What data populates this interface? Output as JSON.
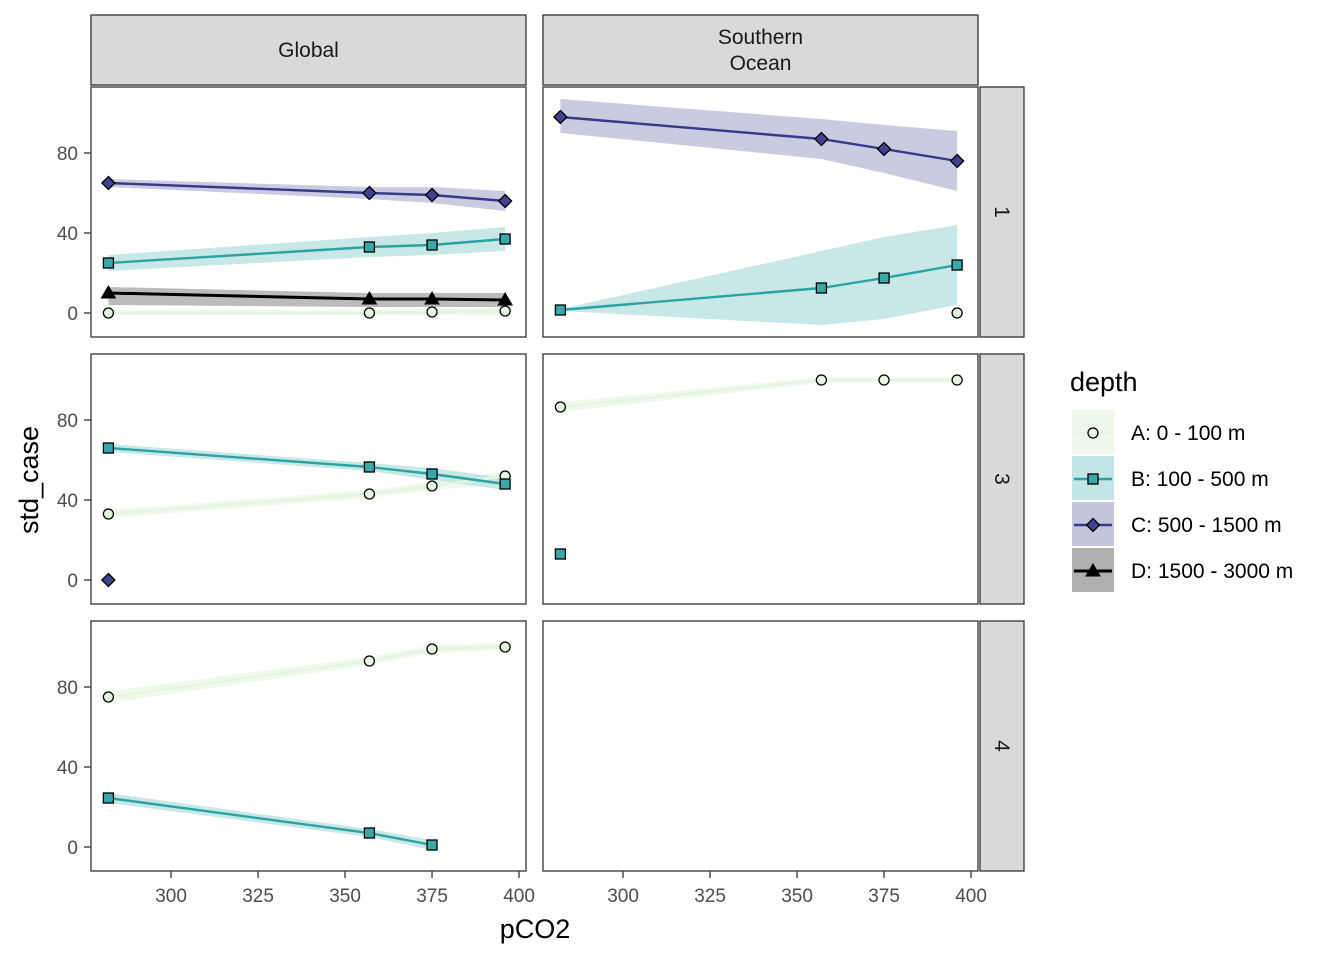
{
  "chart_data": {
    "type": "line",
    "xlabel": "pCO2",
    "ylabel": "std_case",
    "xlim": [
      277,
      402
    ],
    "ylim": [
      -12,
      113
    ],
    "x_ticks": [
      300,
      325,
      350,
      375,
      400
    ],
    "y_ticks": [
      0,
      40,
      80
    ],
    "col_facets": [
      "Global",
      "Southern\nOcean"
    ],
    "row_facets": [
      "1",
      "3",
      "4"
    ],
    "legend": {
      "title": "depth",
      "placement": "right",
      "entries": [
        {
          "key": "A",
          "label": "A: 0 - 100 m",
          "shape": "circle",
          "line_color": "#e5f5e0",
          "fill": "#e5f5e0",
          "band": "#edf8ea"
        },
        {
          "key": "B",
          "label": "B: 100 - 500 m",
          "shape": "square",
          "line_color": "#2ba3a3",
          "fill": "#3aa8a8",
          "band": "#c2e5e5"
        },
        {
          "key": "C",
          "label": "C: 500 - 1500 m",
          "shape": "diamond",
          "line_color": "#36398a",
          "fill": "#404290",
          "band": "#c4c5dd"
        },
        {
          "key": "D",
          "label": "D: 1500 - 3000 m",
          "shape": "triangle",
          "line_color": "#000000",
          "fill": "#000000",
          "band": "#b0b0b0"
        }
      ]
    },
    "panels": [
      {
        "col": 0,
        "row": 0,
        "series": [
          {
            "key": "A",
            "x": [
              282,
              357,
              375,
              396
            ],
            "y": [
              0,
              0,
              0.5,
              1
            ],
            "lo": [
              -1,
              -1,
              -1,
              -1
            ],
            "hi": [
              1.5,
              1.5,
              2,
              2.5
            ]
          },
          {
            "key": "B",
            "x": [
              282,
              357,
              375,
              396
            ],
            "y": [
              25,
              33,
              34,
              37
            ],
            "lo": [
              21,
              28,
              29,
              31
            ],
            "hi": [
              29,
              38,
              40,
              43
            ]
          },
          {
            "key": "C",
            "x": [
              282,
              357,
              375,
              396
            ],
            "y": [
              65,
              60,
              59,
              56
            ],
            "lo": [
              63,
              57,
              55,
              51
            ],
            "hi": [
              67,
              63,
              63,
              61
            ]
          },
          {
            "key": "D",
            "x": [
              282,
              357,
              375,
              396
            ],
            "y": [
              10,
              7,
              7,
              6.5
            ],
            "lo": [
              4,
              3,
              3,
              3
            ],
            "hi": [
              13,
              10,
              10,
              10
            ]
          }
        ]
      },
      {
        "col": 1,
        "row": 0,
        "series": [
          {
            "key": "A",
            "x": [
              396
            ],
            "y": [
              0
            ]
          },
          {
            "key": "B",
            "x": [
              282,
              357,
              375,
              396
            ],
            "y": [
              1.5,
              12.5,
              17.5,
              24
            ],
            "lo": [
              1,
              -6,
              -3,
              4
            ],
            "hi": [
              2,
              31,
              38,
              44
            ]
          },
          {
            "key": "C",
            "x": [
              282,
              357,
              375,
              396
            ],
            "y": [
              98,
              87,
              82,
              76
            ],
            "lo": [
              90,
              77,
              70,
              61
            ],
            "hi": [
              107,
              97,
              94,
              91
            ]
          }
        ]
      },
      {
        "col": 0,
        "row": 1,
        "series": [
          {
            "key": "A",
            "x": [
              282,
              357,
              375,
              396
            ],
            "y": [
              33,
              43,
              47,
              52
            ],
            "lo": [
              31,
              41,
              45,
              48
            ],
            "hi": [
              35,
              45,
              49,
              54
            ]
          },
          {
            "key": "B",
            "x": [
              282,
              357,
              375,
              396
            ],
            "y": [
              66,
              56.5,
              53,
              48
            ],
            "lo": [
              64,
              54.5,
              50,
              45
            ],
            "hi": [
              68,
              58.5,
              56,
              51
            ]
          },
          {
            "key": "C",
            "x": [
              282
            ],
            "y": [
              0
            ]
          }
        ]
      },
      {
        "col": 1,
        "row": 1,
        "series": [
          {
            "key": "A",
            "x": [
              282,
              357,
              375,
              396
            ],
            "y": [
              86.5,
              100,
              100,
              100
            ],
            "lo": [
              84,
              98.5,
              98.5,
              98.5
            ],
            "hi": [
              89,
              101.5,
              101.5,
              101.5
            ]
          },
          {
            "key": "B",
            "x": [
              282
            ],
            "y": [
              13
            ]
          }
        ]
      },
      {
        "col": 0,
        "row": 2,
        "series": [
          {
            "key": "A",
            "x": [
              282,
              357,
              375,
              396
            ],
            "y": [
              75,
              93,
              99,
              100
            ],
            "lo": [
              72,
              91,
              97,
              98.5
            ],
            "hi": [
              78,
              95,
              101,
              102
            ]
          },
          {
            "key": "B",
            "x": [
              282,
              357,
              375
            ],
            "y": [
              24.5,
              7,
              1
            ],
            "lo": [
              22,
              5,
              -1.5
            ],
            "hi": [
              27,
              9,
              3.5
            ]
          }
        ]
      },
      {
        "col": 1,
        "row": 2,
        "series": []
      }
    ]
  }
}
